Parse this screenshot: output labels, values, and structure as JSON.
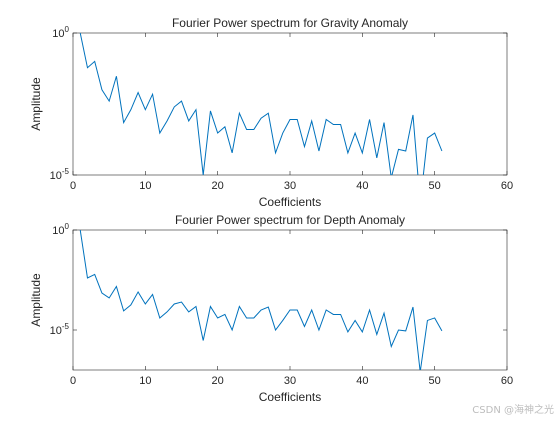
{
  "watermark": "CSDN @海神之光",
  "chart_data": [
    {
      "type": "line",
      "title": "Fourier Power spectrum for Gravity Anomaly",
      "xlabel": "Coefficients",
      "ylabel": "Amplitude",
      "xlim": [
        0,
        60
      ],
      "ylim": [
        1e-05,
        1
      ],
      "yscale": "log",
      "xticks": [
        0,
        10,
        20,
        30,
        40,
        50,
        60
      ],
      "yticks": [
        {
          "value": 1,
          "base": "10",
          "exp": "0"
        },
        {
          "value": 1e-05,
          "base": "10",
          "exp": "-5"
        }
      ],
      "grid": false,
      "line_color": "#0072BD",
      "series": [
        {
          "x": [
            1,
            2,
            3,
            4,
            5,
            6,
            7,
            8,
            9,
            10,
            11,
            12,
            13,
            14,
            15,
            16,
            17,
            18,
            19,
            20,
            21,
            22,
            23,
            24,
            25,
            26,
            27,
            28,
            29,
            30,
            31,
            32,
            33,
            34,
            35,
            36,
            37,
            38,
            39,
            40,
            41,
            42,
            43,
            44,
            45,
            46,
            47,
            48,
            49,
            50,
            51
          ],
          "y": [
            1,
            0.06,
            0.1,
            0.01,
            0.004,
            0.03,
            0.0007,
            0.002,
            0.008,
            0.002,
            0.007,
            0.0003,
            0.0008,
            0.0025,
            0.004,
            0.0008,
            0.002,
            1e-05,
            0.0018,
            0.0003,
            0.0005,
            6e-05,
            0.0015,
            0.0004,
            0.0004,
            0.001,
            0.0015,
            6e-05,
            0.0003,
            0.0009,
            0.0009,
            0.0001,
            0.0008,
            7e-05,
            0.0009,
            0.0006,
            0.0006,
            6e-05,
            0.0003,
            6e-05,
            0.0009,
            4e-05,
            0.0007,
            8e-06,
            8e-05,
            7e-05,
            0.0013,
            1e-06,
            0.0002,
            0.0003,
            7e-05
          ]
        }
      ]
    },
    {
      "type": "line",
      "title": "Fourier Power spectrum for Depth Anomaly",
      "xlabel": "Coefficients",
      "ylabel": "Amplitude",
      "xlim": [
        0,
        60
      ],
      "ylim": [
        1e-07,
        1
      ],
      "yscale": "log",
      "xticks": [
        0,
        10,
        20,
        30,
        40,
        50,
        60
      ],
      "yticks": [
        {
          "value": 1,
          "base": "10",
          "exp": "0"
        },
        {
          "value": 1e-05,
          "base": "10",
          "exp": "-5"
        }
      ],
      "grid": false,
      "line_color": "#0072BD",
      "series": [
        {
          "x": [
            1,
            2,
            3,
            4,
            5,
            6,
            7,
            8,
            9,
            10,
            11,
            12,
            13,
            14,
            15,
            16,
            17,
            18,
            19,
            20,
            21,
            22,
            23,
            24,
            25,
            26,
            27,
            28,
            29,
            30,
            31,
            32,
            33,
            34,
            35,
            36,
            37,
            38,
            39,
            40,
            41,
            42,
            43,
            44,
            45,
            46,
            47,
            48,
            49,
            50,
            51
          ],
          "y": [
            1,
            0.004,
            0.006,
            0.0007,
            0.0004,
            0.0015,
            9e-05,
            0.00018,
            0.0008,
            0.0002,
            0.0006,
            4e-05,
            8e-05,
            0.0002,
            0.00025,
            8e-05,
            0.00015,
            3e-06,
            0.00015,
            4e-05,
            6e-05,
            1e-05,
            0.00015,
            4e-05,
            4e-05,
            0.0001,
            0.00014,
            1e-05,
            3e-05,
            0.0001,
            0.0001,
            1.5e-05,
            0.0001,
            1e-05,
            0.0001,
            6e-05,
            6e-05,
            8e-06,
            3e-05,
            8e-06,
            0.0001,
            6e-06,
            7e-05,
            1.5e-06,
            1e-05,
            9e-06,
            0.00014,
            8e-08,
            3e-05,
            4e-05,
            9e-06
          ]
        }
      ]
    }
  ]
}
